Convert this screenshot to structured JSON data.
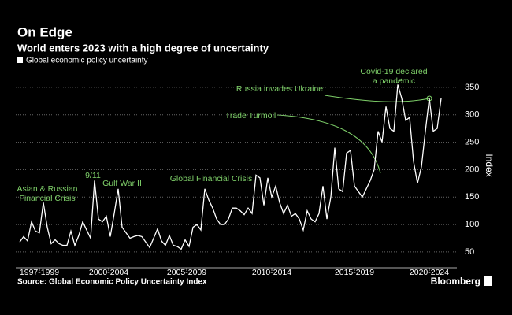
{
  "chart_data": {
    "type": "line",
    "title": "On Edge",
    "subtitle": "World enters 2023 with a high degree of uncertainty",
    "y_label": "Index",
    "source": "Source: Global Economic Policy Uncertainty Index",
    "brand": "Bloomberg",
    "series": [
      {
        "name": "Global economic policy uncertainty",
        "color": "#ffffff",
        "values": [
          68,
          78,
          70,
          105,
          88,
          85,
          140,
          95,
          65,
          72,
          65,
          62,
          62,
          88,
          62,
          80,
          105,
          90,
          75,
          180,
          110,
          105,
          115,
          78,
          120,
          165,
          95,
          85,
          75,
          78,
          80,
          78,
          68,
          58,
          75,
          92,
          70,
          62,
          80,
          62,
          60,
          55,
          72,
          60,
          95,
          100,
          90,
          165,
          145,
          130,
          110,
          100,
          100,
          110,
          130,
          130,
          125,
          118,
          130,
          120,
          190,
          185,
          135,
          185,
          150,
          170,
          140,
          120,
          135,
          115,
          120,
          110,
          90,
          125,
          110,
          105,
          120,
          170,
          110,
          150,
          240,
          165,
          160,
          230,
          235,
          170,
          160,
          150,
          165,
          180,
          200,
          270,
          250,
          315,
          275,
          270,
          355,
          330,
          290,
          295,
          215,
          175,
          205,
          270,
          330,
          270,
          275,
          330
        ]
      }
    ],
    "xlim": [
      -1,
      110
    ],
    "xticks": [
      {
        "value": 5,
        "label": "1997-1999"
      },
      {
        "value": 22.6,
        "label": "2000-2004"
      },
      {
        "value": 42.4,
        "label": "2005-2009"
      },
      {
        "value": 64,
        "label": "2010-2014"
      },
      {
        "value": 85,
        "label": "2015-2019"
      },
      {
        "value": 104,
        "label": "2020-2024"
      }
    ],
    "ylim": [
      14,
      380
    ],
    "yticks": [
      50,
      100,
      150,
      200,
      250,
      300,
      350
    ],
    "grid": true,
    "annotations": [
      {
        "lines": [
          "Asian & Russian",
          "Financial Crisis"
        ]
      },
      {
        "lines": [
          "9/11"
        ]
      },
      {
        "lines": [
          "Gulf War II"
        ]
      },
      {
        "lines": [
          "Global Financial Crisis"
        ]
      },
      {
        "lines": [
          "Trade Turmoil"
        ]
      },
      {
        "lines": [
          "Russia invades Ukraine"
        ]
      },
      {
        "lines": [
          "Covid-19 declared",
          "a pandemic"
        ]
      }
    ]
  }
}
